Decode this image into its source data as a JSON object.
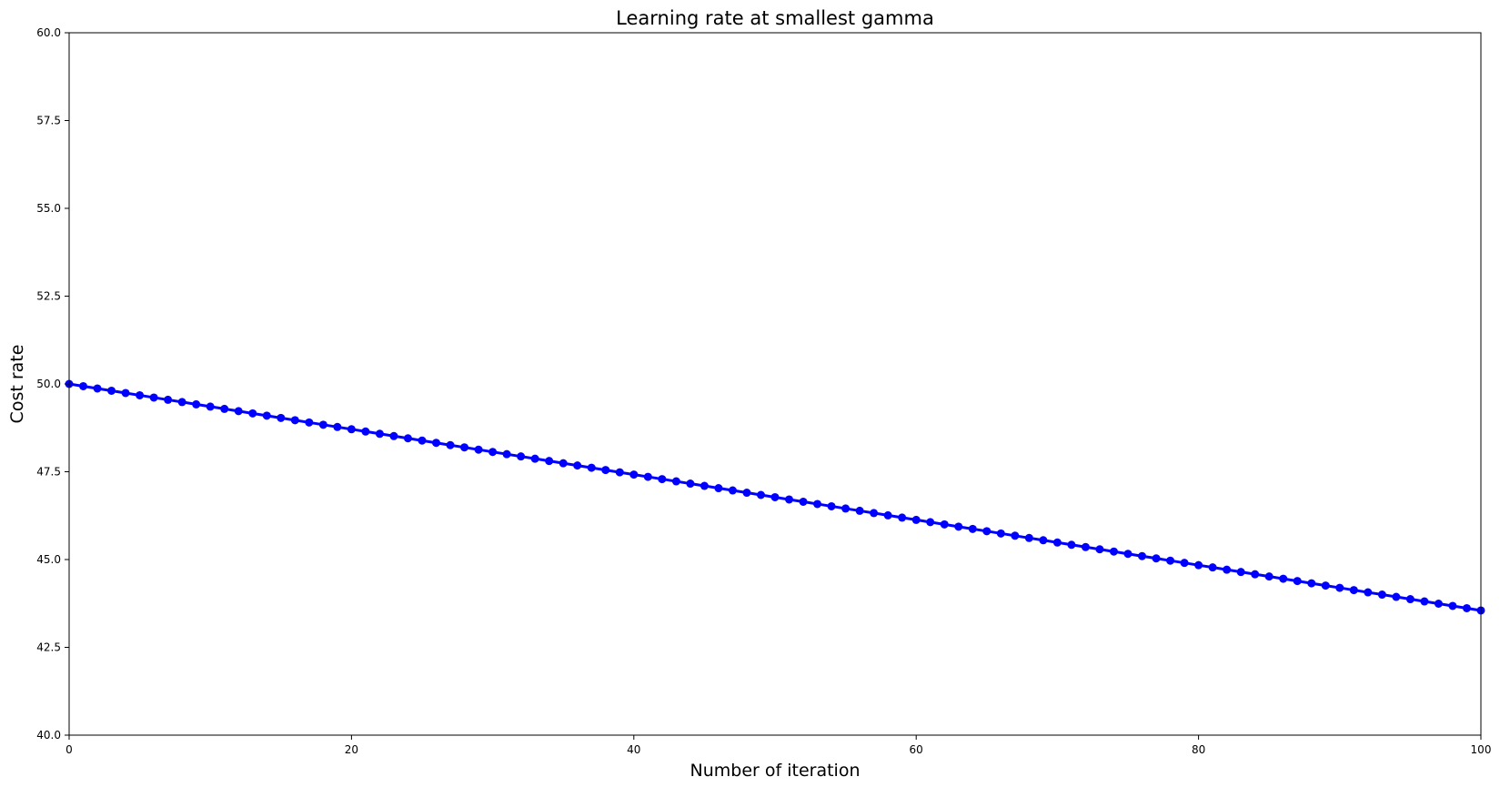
{
  "chart_data": {
    "type": "line",
    "title": "Learning rate at smallest gamma",
    "xlabel": "Number of iteration",
    "ylabel": "Cost rate",
    "xlim": [
      0,
      100
    ],
    "ylim": [
      40,
      60
    ],
    "xticks": [
      "0",
      "20",
      "40",
      "60",
      "80",
      "100"
    ],
    "yticks": [
      "40.0",
      "42.5",
      "45.0",
      "47.5",
      "50.0",
      "52.5",
      "55.0",
      "57.5",
      "60.0"
    ],
    "grid": false,
    "series": [
      {
        "color": "#0000ff",
        "marker": "circle",
        "x_start": 0,
        "x_end": 100,
        "x_step": 1,
        "y_start": 50.0,
        "y_end": 43.55
      }
    ]
  }
}
